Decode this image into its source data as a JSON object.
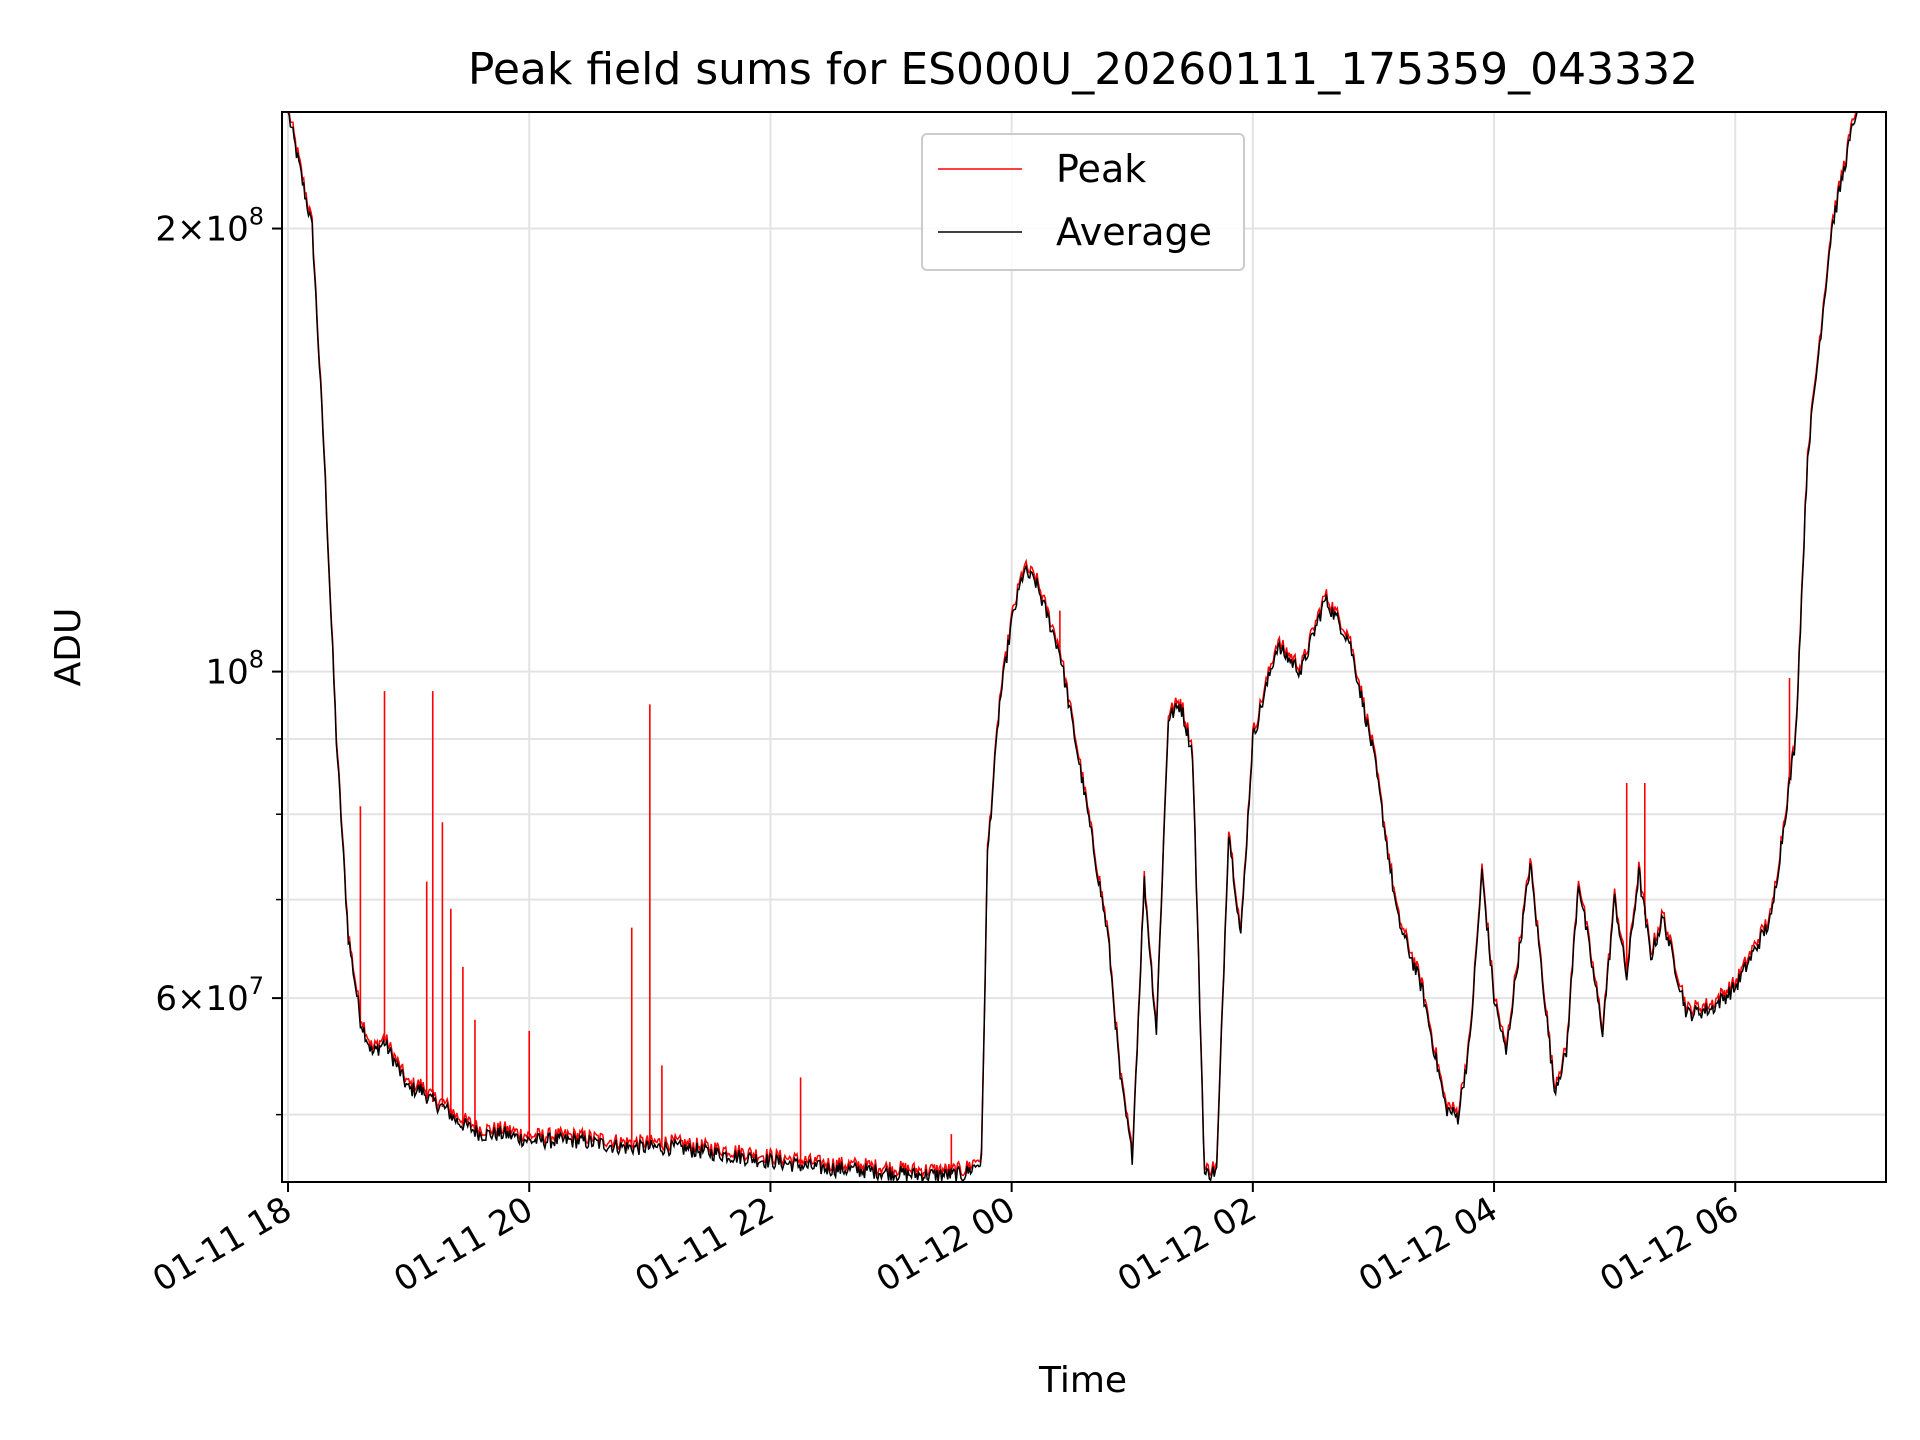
{
  "chart_data": {
    "type": "line",
    "title": "Peak field sums for ES000U_20260111_175359_043332",
    "xlabel": "Time",
    "ylabel": "ADU",
    "yscale": "log",
    "ylim": [
      45000000,
      240000000
    ],
    "xlim_hours": [
      -0.05,
      13.25
    ],
    "x_ticks": [
      {
        "hour": 0,
        "label": "01-11 18"
      },
      {
        "hour": 2,
        "label": "01-11 20"
      },
      {
        "hour": 4,
        "label": "01-11 22"
      },
      {
        "hour": 6,
        "label": "01-12 00"
      },
      {
        "hour": 8,
        "label": "01-12 02"
      },
      {
        "hour": 10,
        "label": "01-12 04"
      },
      {
        "hour": 12,
        "label": "01-12 06"
      }
    ],
    "y_ticks": [
      {
        "value": 200000000,
        "mant": "2",
        "exp": "8"
      },
      {
        "value": 100000000,
        "mant": "",
        "exp": "8"
      },
      {
        "value": 60000000,
        "mant": "6",
        "exp": "7"
      }
    ],
    "y_minor_ticks": [
      50000000,
      70000000,
      80000000,
      90000000
    ],
    "grid": true,
    "legend": {
      "position": "top-center",
      "entries": [
        {
          "name": "Peak",
          "color": "#ff0000"
        },
        {
          "name": "Average",
          "color": "#000000"
        }
      ]
    },
    "series": [
      {
        "name": "Average",
        "color": "#000000",
        "x_hours": [
          0.0,
          0.2,
          0.3,
          0.4,
          0.5,
          0.6,
          0.7,
          0.8,
          0.9,
          1.0,
          1.1,
          1.2,
          1.3,
          1.4,
          1.5,
          1.6,
          1.8,
          2.0,
          2.4,
          2.8,
          3.2,
          3.6,
          4.0,
          4.4,
          4.8,
          5.2,
          5.6,
          5.75,
          5.8,
          5.9,
          6.0,
          6.1,
          6.2,
          6.4,
          6.6,
          6.8,
          6.9,
          7.0,
          7.1,
          7.2,
          7.3,
          7.4,
          7.5,
          7.6,
          7.7,
          7.8,
          7.9,
          8.0,
          8.2,
          8.4,
          8.6,
          8.8,
          9.0,
          9.2,
          9.4,
          9.6,
          9.7,
          9.8,
          9.9,
          10.0,
          10.1,
          10.3,
          10.5,
          10.6,
          10.7,
          10.9,
          11.0,
          11.1,
          11.2,
          11.3,
          11.4,
          11.6,
          11.8,
          12.0,
          12.3,
          12.5,
          12.6,
          12.8,
          13.0,
          13.1
        ],
        "values": [
          240000000,
          200000000,
          140000000,
          90000000,
          66000000,
          58000000,
          55000000,
          56000000,
          54000000,
          52000000,
          52000000,
          51000000,
          50500000,
          49500000,
          49000000,
          48500000,
          48500000,
          48000000,
          48000000,
          47500000,
          47500000,
          47000000,
          46500000,
          46000000,
          45800000,
          45500000,
          45500000,
          46500000,
          75000000,
          95000000,
          108000000,
          117000000,
          115000000,
          103000000,
          83000000,
          66000000,
          53000000,
          46800000,
          72000000,
          57000000,
          93000000,
          95000000,
          88000000,
          45500000,
          45800000,
          78000000,
          66000000,
          90000000,
          104000000,
          100000000,
          112000000,
          105000000,
          88000000,
          68000000,
          61000000,
          50500000,
          49800000,
          56000000,
          73000000,
          60000000,
          55000000,
          74000000,
          52000000,
          55000000,
          72000000,
          57000000,
          70000000,
          62000000,
          73000000,
          64000000,
          68000000,
          58500000,
          59000000,
          61000000,
          68000000,
          90000000,
          140000000,
          200000000,
          240000000,
          240000000
        ]
      },
      {
        "name": "Peak",
        "color": "#ff0000",
        "spikes": [
          {
            "hour": 0.6,
            "value": 81000000
          },
          {
            "hour": 0.8,
            "value": 97000000
          },
          {
            "hour": 1.15,
            "value": 72000000
          },
          {
            "hour": 1.2,
            "value": 97000000
          },
          {
            "hour": 1.28,
            "value": 79000000
          },
          {
            "hour": 1.35,
            "value": 69000000
          },
          {
            "hour": 1.45,
            "value": 63000000
          },
          {
            "hour": 1.55,
            "value": 58000000
          },
          {
            "hour": 2.0,
            "value": 57000000
          },
          {
            "hour": 2.85,
            "value": 67000000
          },
          {
            "hour": 3.0,
            "value": 95000000
          },
          {
            "hour": 3.1,
            "value": 54000000
          },
          {
            "hour": 4.25,
            "value": 53000000
          },
          {
            "hour": 5.5,
            "value": 48500000
          },
          {
            "hour": 6.4,
            "value": 110000000
          },
          {
            "hour": 11.1,
            "value": 84000000
          },
          {
            "hour": 11.25,
            "value": 84000000
          },
          {
            "hour": 12.45,
            "value": 99000000
          }
        ]
      }
    ]
  }
}
